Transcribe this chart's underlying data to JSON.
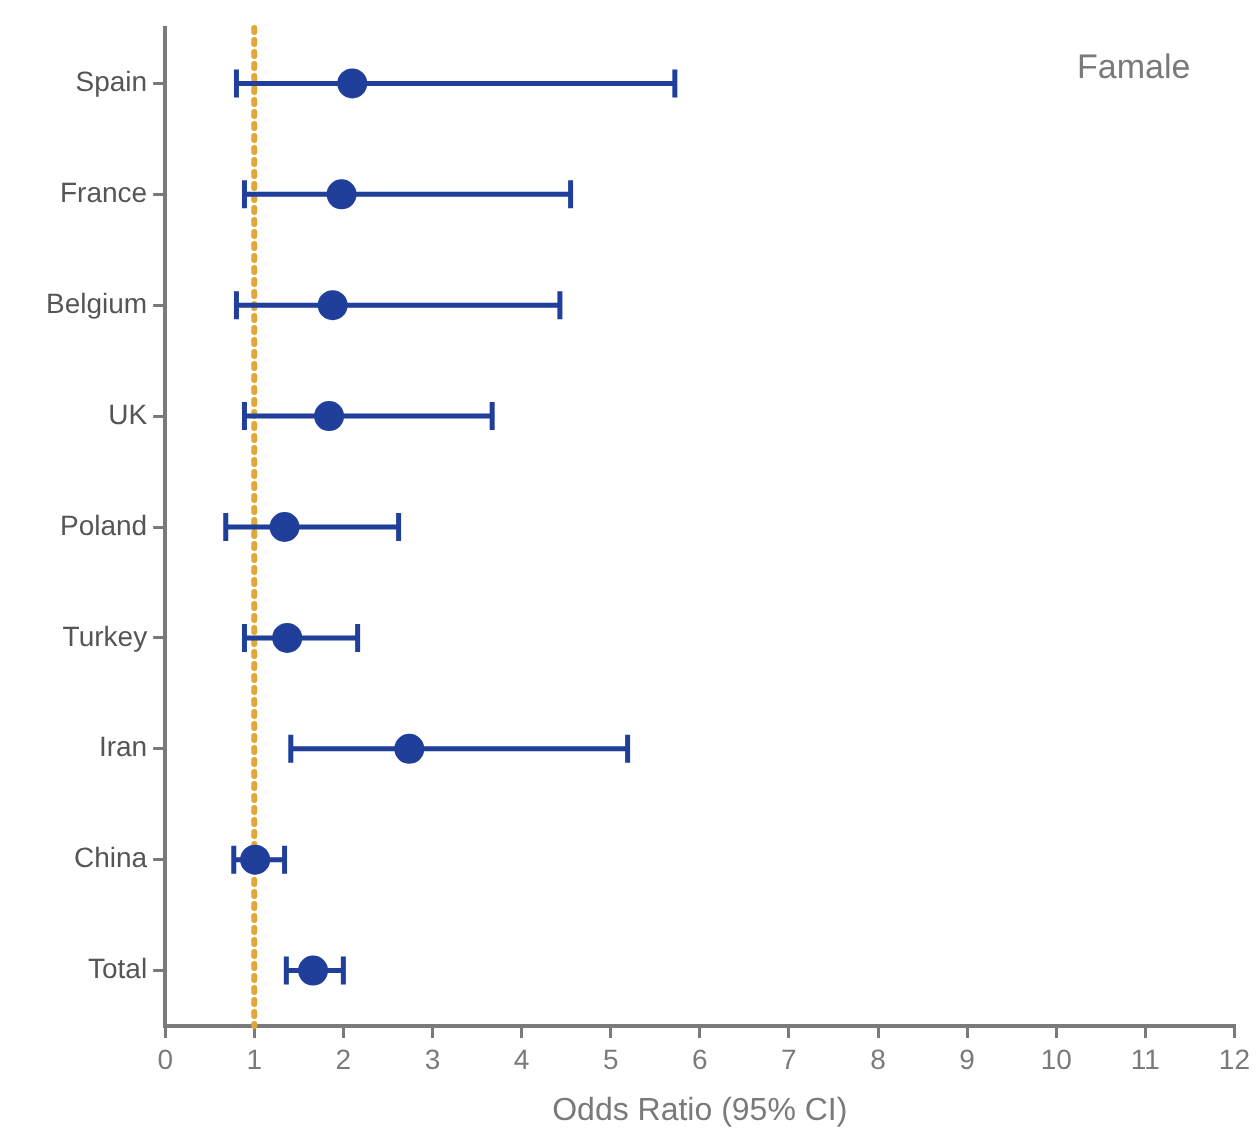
{
  "chart_data": {
    "type": "scatter",
    "orientation": "horizontal",
    "xlabel": "Odds Ratio (95% CI)",
    "categories": [
      "Spain",
      "France",
      "Belgium",
      "UK",
      "Poland",
      "Turkey",
      "Iran",
      "China",
      "Total"
    ],
    "values": [
      2.1,
      1.98,
      1.88,
      1.84,
      1.34,
      1.37,
      2.74,
      1.01,
      1.66
    ],
    "errors": [
      [
        0.8,
        5.72
      ],
      [
        0.89,
        4.55
      ],
      [
        0.8,
        4.43
      ],
      [
        0.89,
        3.67
      ],
      [
        0.68,
        2.62
      ],
      [
        0.89,
        2.16
      ],
      [
        1.41,
        5.19
      ],
      [
        0.77,
        1.34
      ],
      [
        1.36,
        2.0
      ]
    ],
    "color": "#1f3f9a",
    "marker": "circle",
    "xlim": [
      0,
      12
    ],
    "xticks": [
      0,
      1,
      2,
      3,
      4,
      5,
      6,
      7,
      8,
      9,
      10,
      11,
      12
    ],
    "ref_lines": [
      {
        "axis": "x",
        "value": 1,
        "color": "#e0a83a",
        "line_style": "dotted"
      }
    ],
    "annotations": [
      "Famale"
    ],
    "grid": false,
    "legend": false
  }
}
